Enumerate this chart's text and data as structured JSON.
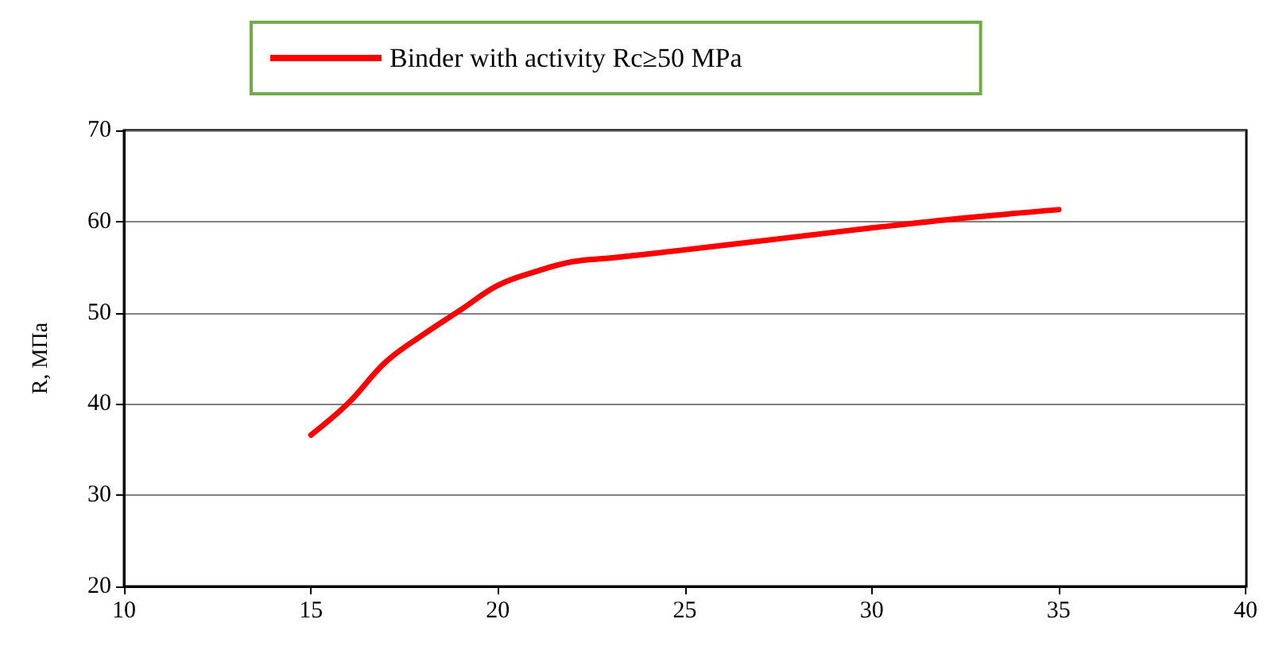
{
  "chart_data": {
    "type": "line",
    "ylabel": "R, MПa",
    "x": [
      15,
      16,
      17,
      18,
      19,
      20,
      21,
      22,
      23,
      25,
      27.5,
      30,
      32.5,
      35
    ],
    "series": [
      {
        "name": "Binder with activity Rc≥50 MPa",
        "color": "#ff0000",
        "values": [
          36.6,
          40.1,
          44.6,
          47.6,
          50.3,
          53.0,
          54.5,
          55.6,
          56.0,
          56.9,
          58.1,
          59.3,
          60.4,
          61.3
        ]
      }
    ],
    "xlim": [
      10,
      40
    ],
    "xticks": [
      10,
      15,
      20,
      25,
      30,
      35,
      40
    ],
    "ylim": [
      20,
      70
    ],
    "yticks": [
      20,
      30,
      40,
      50,
      60,
      70
    ],
    "grid": "y",
    "legend": "top",
    "marker": "none",
    "line_style": "solid"
  }
}
